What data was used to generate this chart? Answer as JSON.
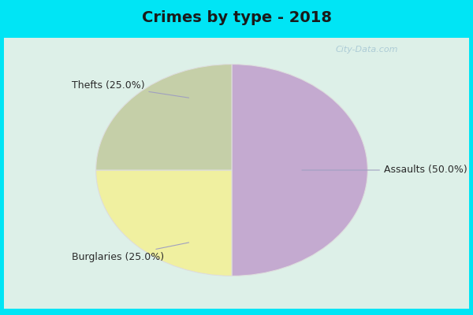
{
  "title": "Crimes by type - 2018",
  "slices": [
    "Assaults",
    "Thefts",
    "Burglaries"
  ],
  "values": [
    50.0,
    25.0,
    25.0
  ],
  "colors": [
    "#c4aad0",
    "#f0f0a0",
    "#c5cfa8"
  ],
  "labels": [
    "Assaults (50.0%)",
    "Thefts (25.0%)",
    "Burglaries (25.0%)"
  ],
  "startangle": 90,
  "bg_cyan": "#00e5f5",
  "bg_inner": "#ddf0e8",
  "title_fontsize": 14,
  "label_fontsize": 9,
  "watermark": "City-Data.com"
}
